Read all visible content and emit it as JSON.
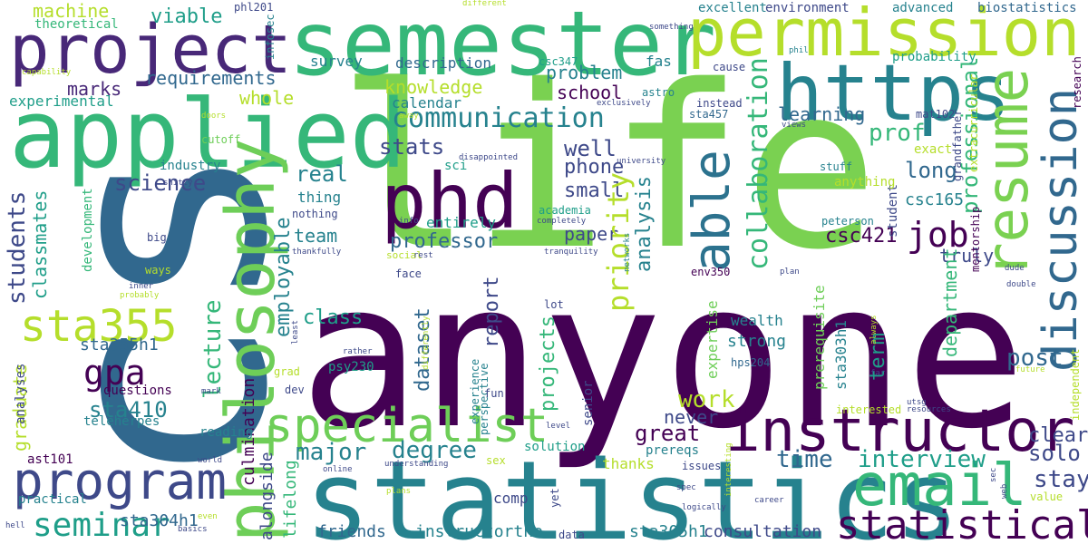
{
  "cloud": {
    "colors": {
      "dark_purple": "#440154",
      "purple": "#482878",
      "indigo": "#3e4989",
      "blue": "#31688e",
      "steel": "#26828e",
      "teal": "#1f9e89",
      "green": "#35b779",
      "lime": "#6ece58",
      "light_lime": "#b5de2b",
      "yellow": "#fde725"
    },
    "words": {
      "w_life": "life",
      "w_anyone": "anyone",
      "w_cs": "cs",
      "w_statistics": "statistics",
      "w_semester": "semester",
      "w_applied": "applied",
      "w_project": "project",
      "w_phd": "phd",
      "w_permission": "permission",
      "w_https": "https",
      "w_philosophy": "philosophy",
      "w_instructor": "instructor",
      "w_email": "email",
      "w_resume": "resume",
      "w_discussion": "discussion",
      "w_specialist": "specialist",
      "w_program": "program",
      "w_statistical": "statistical",
      "w_able": "able",
      "w_sta355": "sta355",
      "w_seminar": "seminar",
      "w_communication": "communication",
      "w_collaboration": "collaboration",
      "w_job": "job",
      "w_gpa": "gpa",
      "w_machine": "machine",
      "w_theoretical": "theoretical",
      "w_viable": "viable",
      "w_requirements": "requirements",
      "w_marks": "marks",
      "w_whole": "whole",
      "w_knowledge": "knowledge",
      "w_problem": "problem",
      "w_school": "school",
      "w_learning": "learning",
      "w_stats": "stats",
      "w_well": "well",
      "w_phone": "phone",
      "w_small": "small",
      "w_real": "real",
      "w_science": "science",
      "w_students": "students",
      "w_classmates": "classmates",
      "w_team": "team",
      "w_professor": "professor",
      "w_paper": "paper",
      "w_priority": "priority",
      "w_analysis": "analysis",
      "w_prof": "prof",
      "w_professional": "professional",
      "w_long": "long",
      "w_csc421": "csc421",
      "w_csc165": "csc165",
      "w_truly": "truly",
      "w_department": "department",
      "w_post": "post",
      "w_term": "term",
      "w_employable": "employable",
      "w_class": "class",
      "w_dataset": "dataset",
      "w_report": "report",
      "w_projects": "projects",
      "w_lecture": "lecture",
      "w_graduate": "graduate",
      "w_sta355h1": "sta355h1",
      "w_sta410": "sta410",
      "w_work": "work",
      "w_great": "great",
      "w_never": "never",
      "w_major": "major",
      "w_degree": "degree",
      "w_time": "time",
      "w_interview": "interview",
      "w_solo": "solo",
      "w_stay": "stay",
      "w_strong": "strong",
      "w_wealth": "wealth",
      "w_expertise": "expertise",
      "w_culmination": "culmination",
      "w_alongside": "alongside",
      "w_lifelong": "lifelong",
      "w_sta304h1": "sta304h1",
      "w_sta305h1": "sta305h1",
      "w_consultation": "consultation",
      "w_friends": "friends",
      "w_instructorthe": "instructorthe",
      "w_thanks": "thanks",
      "w_comp": "comp",
      "w_solution": "solution",
      "w_practical": "practical",
      "w_ast101": "ast101",
      "w_analyses": "analyses",
      "w_questions": "questions",
      "w_teleherpes": "teleherpes",
      "w_reading": "reading",
      "w_psy230": "psy230",
      "w_experimental": "experimental",
      "w_development": "development",
      "w_industry": "industry",
      "w_cutoff": "cutoff",
      "w_survey": "survey",
      "w_description": "description",
      "w_calendar": "calendar",
      "w_sci": "sci",
      "w_entirely": "entirely",
      "w_thing": "thing",
      "w_nothing": "nothing",
      "w_academia": "academia",
      "w_fas": "fas",
      "w_astro": "astro",
      "w_csc347": "csc347",
      "w_sta457": "sta457",
      "w_instead": "instead",
      "w_cause": "cause",
      "w_mat102": "mat102",
      "w_grandfather": "grandfather",
      "w_mentorship": "mentorship",
      "w_student": "student",
      "w_peterson": "peterson",
      "w_exact": "exact",
      "w_anything": "anything",
      "w_stuff": "stuff",
      "w_excellent": "excellent",
      "w_environment": "environment",
      "w_advanced": "advanced",
      "w_biostatistics": "biostatistics",
      "w_probability": "probability",
      "w_extracurricular": "extracurricular",
      "w_research": "research",
      "w_phl201": "phl201",
      "w_infosec": "infosec",
      "w_different": "different",
      "w_something": "something",
      "w_phil": "phil",
      "w_capability": "capability",
      "w_doors": "doors",
      "w_away": "away",
      "w_disappointed": "disappointed",
      "w_university": "university",
      "w_exclusively": "exclusively",
      "w_views": "views",
      "w_shitty": "shitty",
      "w_info": "info",
      "w_completely": "completely",
      "w_networks": "networks",
      "w_thankfully": "thankfully",
      "w_tranquility": "tranquility",
      "w_social": "social",
      "w_rest": "rest",
      "w_big": "big",
      "w_ways": "ways",
      "w_inner": "inner",
      "w_probably": "probably",
      "w_face": "face",
      "w_lot": "lot",
      "w_env350": "env350",
      "w_plan": "plan",
      "w_dude": "dude",
      "w_double": "double",
      "w_prerequisite": "prerequisite",
      "w_sta303h1": "sta303h1",
      "w_hps204": "hps204",
      "w_always": "always",
      "w_far": "far",
      "w_future": "future",
      "w_utsg": "utsg",
      "w_independent": "independent",
      "w_clear": "clear",
      "w_interested": "interested",
      "w_resources": "resources",
      "w_grad": "grad",
      "w_dev": "dev",
      "w_rather": "rather",
      "w_differently": "differently",
      "w_least": "least",
      "w_experience": "experience",
      "w_perspective": "perspective",
      "w_fun": "fun",
      "w_senior": "senior",
      "w_level": "level",
      "w_mark": "mark",
      "w_prereqs": "prereqs",
      "w_sex": "sex",
      "w_issues": "issues",
      "w_spec": "spec",
      "w_logically": "logically",
      "w_interesting": "interesting",
      "w_career": "career",
      "w_web": "web",
      "w_value": "value",
      "w_world": "world",
      "w_online": "online",
      "w_understanding": "understanding",
      "w_plans": "plans",
      "w_yet": "yet",
      "w_data": "data",
      "w_even": "even",
      "w_basics": "basics",
      "w_hell": "hell"
    }
  }
}
